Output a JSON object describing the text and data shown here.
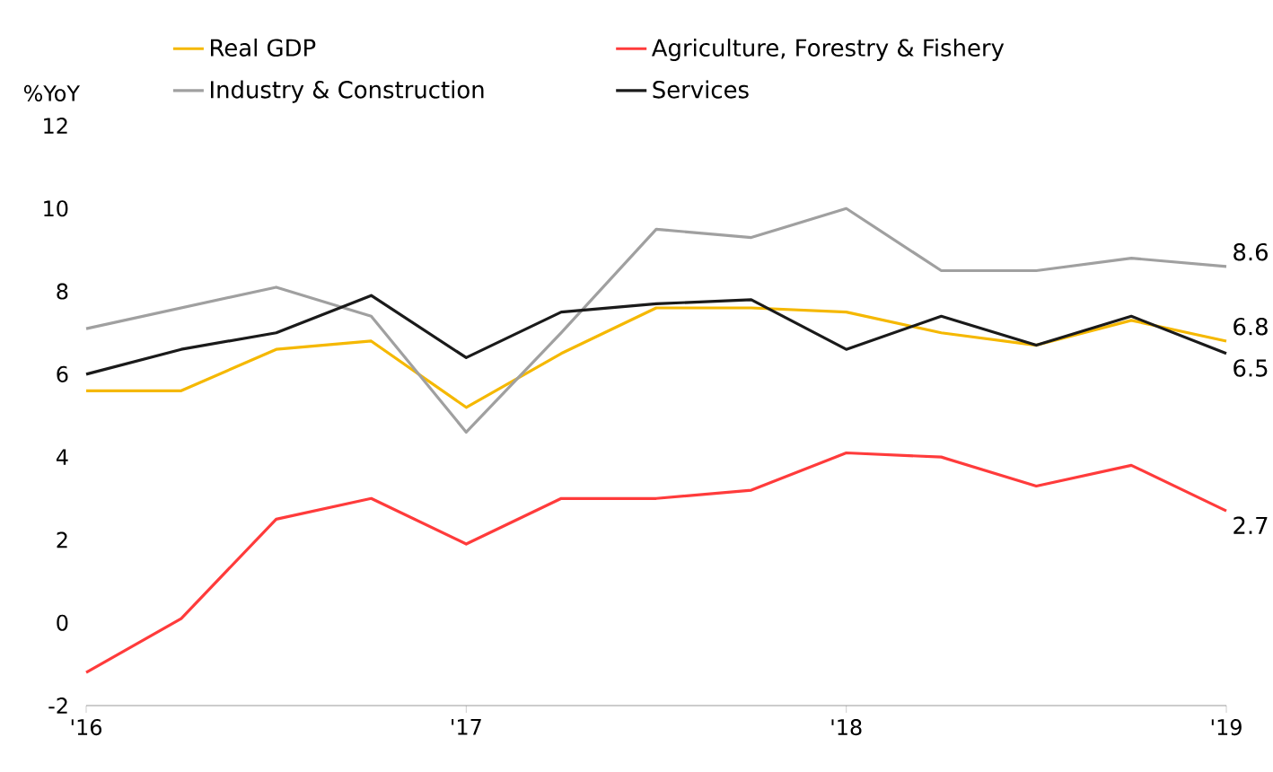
{
  "chart_data": {
    "type": "line",
    "ylabel": "%YoY",
    "xlim": [
      2016,
      2019
    ],
    "ylim": [
      -2,
      12
    ],
    "xticks": [
      {
        "value": 2016,
        "label": "'16"
      },
      {
        "value": 2017,
        "label": "'17"
      },
      {
        "value": 2018,
        "label": "'18"
      },
      {
        "value": 2019,
        "label": "'19"
      }
    ],
    "yticks": [
      -2,
      0,
      2,
      4,
      6,
      8,
      10,
      12
    ],
    "x": [
      2016,
      2016.25,
      2016.5,
      2016.75,
      2017,
      2017.25,
      2017.5,
      2017.75,
      2018,
      2018.25,
      2018.5,
      2018.75,
      2019
    ],
    "legend": "top",
    "grid": false,
    "marker": "none",
    "line_style": "solid",
    "series": [
      {
        "name": "Real GDP",
        "color": "#f5b800",
        "values": [
          5.6,
          5.6,
          6.6,
          6.8,
          5.2,
          6.5,
          7.6,
          7.6,
          7.5,
          7.0,
          6.7,
          7.3,
          6.8
        ],
        "value_labels": [
          null,
          null,
          null,
          null,
          null,
          null,
          null,
          null,
          null,
          null,
          null,
          null,
          "6.8"
        ]
      },
      {
        "name": "Agriculture, Forestry & Fishery",
        "color": "#ff3b3b",
        "values": [
          -1.2,
          0.1,
          2.5,
          3.0,
          1.9,
          3.0,
          3.0,
          3.2,
          4.1,
          4.0,
          3.3,
          3.8,
          2.7
        ],
        "value_labels": [
          null,
          null,
          null,
          null,
          null,
          null,
          null,
          null,
          null,
          null,
          null,
          null,
          "2.7"
        ]
      },
      {
        "name": "Industry & Construction",
        "color": "#a0a0a0",
        "values": [
          7.1,
          7.6,
          8.1,
          7.4,
          4.6,
          7.0,
          9.5,
          9.3,
          10.0,
          8.5,
          8.5,
          8.8,
          8.6
        ],
        "value_labels": [
          null,
          null,
          null,
          null,
          null,
          null,
          null,
          null,
          null,
          null,
          null,
          null,
          "8.6"
        ]
      },
      {
        "name": "Services",
        "color": "#1a1a1a",
        "values": [
          6.0,
          6.6,
          7.0,
          7.9,
          6.4,
          7.5,
          7.7,
          7.8,
          6.6,
          7.4,
          6.7,
          7.4,
          6.5
        ],
        "value_labels": [
          null,
          null,
          null,
          null,
          null,
          null,
          null,
          null,
          null,
          null,
          null,
          null,
          "6.5"
        ]
      }
    ]
  }
}
